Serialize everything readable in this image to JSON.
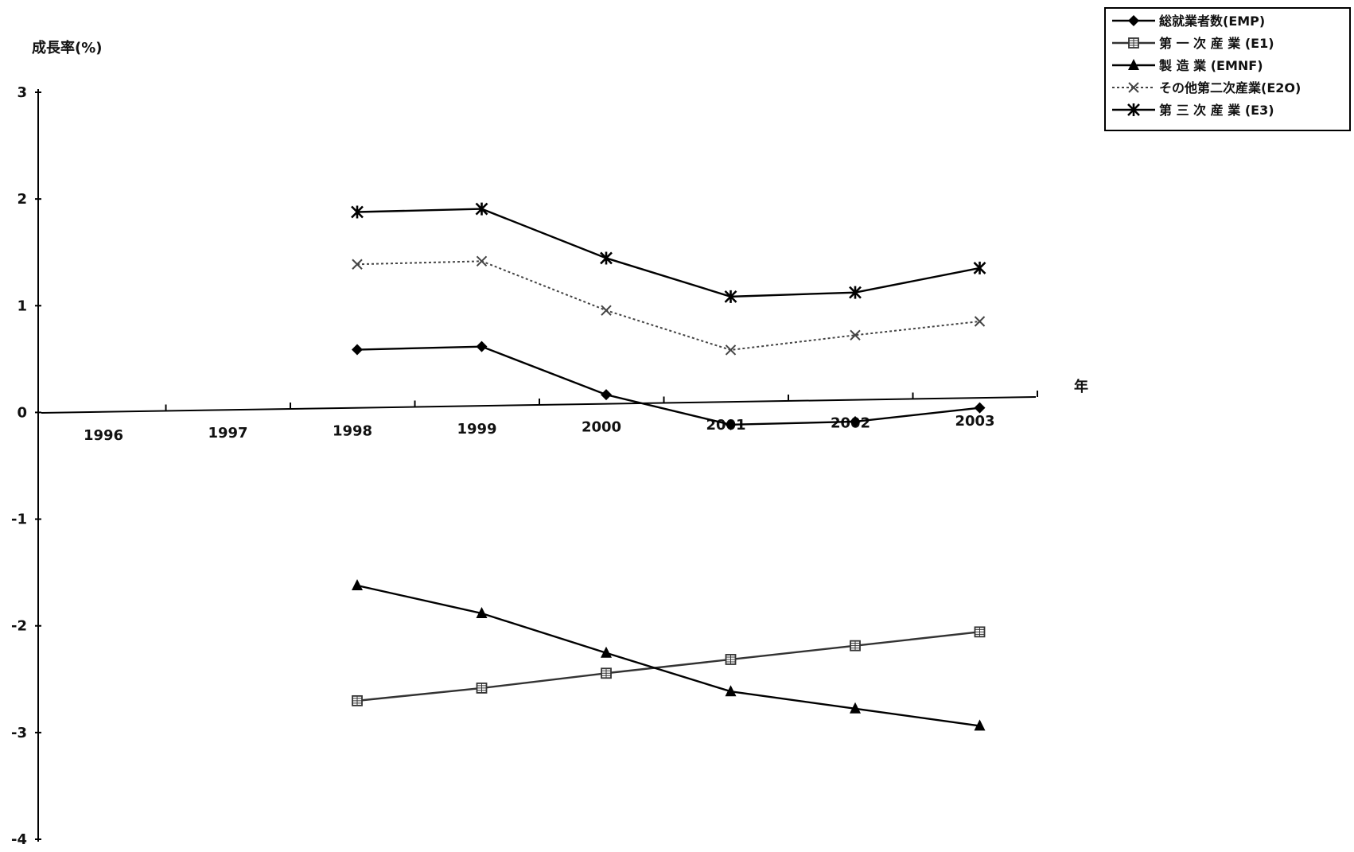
{
  "chart_data": {
    "type": "line",
    "ylabel": "成長率(%)",
    "xlabel": "年",
    "ylim": [
      -4,
      3
    ],
    "yticks": [
      "3",
      "2",
      "1",
      "0",
      "-1",
      "-2",
      "-3",
      "-4"
    ],
    "categories": [
      "1996",
      "1997",
      "1998",
      "1999",
      "2000",
      "2001",
      "2002",
      "2003"
    ],
    "grid": false,
    "legend_position": "top-right",
    "series": [
      {
        "name": "総就業者数(EMP)",
        "marker": "diamond",
        "dash": "solid",
        "color": "#000000",
        "values": [
          null,
          null,
          0.55,
          0.56,
          0.09,
          -0.21,
          -0.2,
          -0.09
        ]
      },
      {
        "name": "第 一 次 産 業 (E1)",
        "marker": "square-hatched",
        "dash": "solid",
        "color": "#333333",
        "values": [
          null,
          null,
          -2.74,
          -2.64,
          -2.52,
          -2.41,
          -2.3,
          -2.19
        ]
      },
      {
        "name": "製 造 業 (EMNF)",
        "marker": "triangle",
        "dash": "solid",
        "color": "#000000",
        "values": [
          null,
          null,
          -1.66,
          -1.94,
          -2.33,
          -2.71,
          -2.89,
          -3.07
        ]
      },
      {
        "name": "その他第二次産業(E2O)",
        "marker": "x",
        "dash": "dotted",
        "color": "#444444",
        "values": [
          null,
          null,
          1.35,
          1.36,
          0.88,
          0.49,
          0.61,
          0.72
        ]
      },
      {
        "name": "第 三 次 産 業 (E3)",
        "marker": "asterisk",
        "dash": "solid",
        "color": "#000000",
        "values": [
          null,
          null,
          1.84,
          1.85,
          1.37,
          0.99,
          1.01,
          1.22
        ]
      }
    ]
  }
}
